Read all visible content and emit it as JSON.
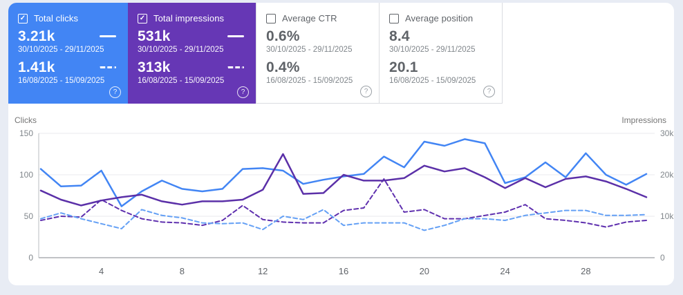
{
  "cards": [
    {
      "label": "Total clicks",
      "checked": true,
      "bg": "#4285f4",
      "value_current": "3.21k",
      "range_current": "30/10/2025 - 29/11/2025",
      "value_previous": "1.41k",
      "range_previous": "16/08/2025 - 15/09/2025"
    },
    {
      "label": "Total impressions",
      "checked": true,
      "bg": "#6637b5",
      "value_current": "531k",
      "range_current": "30/10/2025 - 29/11/2025",
      "value_previous": "313k",
      "range_previous": "16/08/2025 - 15/09/2025"
    },
    {
      "label": "Average CTR",
      "checked": false,
      "bg": "#ffffff",
      "value_current": "0.6%",
      "range_current": "30/10/2025 - 29/11/2025",
      "value_previous": "0.4%",
      "range_previous": "16/08/2025 - 15/09/2025"
    },
    {
      "label": "Average position",
      "checked": false,
      "bg": "#ffffff",
      "value_current": "8.4",
      "range_current": "30/10/2025 - 29/11/2025",
      "value_previous": "20.1",
      "range_previous": "16/08/2025 - 15/09/2025"
    }
  ],
  "icons": {
    "help_glyph": "?",
    "check_glyph": "✓"
  },
  "chart_data": {
    "type": "line",
    "x": [
      1,
      2,
      3,
      4,
      5,
      6,
      7,
      8,
      9,
      10,
      11,
      12,
      13,
      14,
      15,
      16,
      17,
      18,
      19,
      20,
      21,
      22,
      23,
      24,
      25,
      26,
      27,
      28,
      29,
      30,
      31
    ],
    "xticks": [
      4,
      8,
      12,
      16,
      20,
      24,
      28
    ],
    "grid": true,
    "left_axis": {
      "label": "Clicks",
      "ticks": [
        150,
        100,
        50,
        0
      ],
      "max": 150,
      "ylim": [
        0,
        150
      ]
    },
    "right_axis": {
      "label": "Impressions",
      "tick_labels": [
        "30k",
        "20k",
        "10k",
        "0"
      ],
      "tick_values": [
        30000,
        20000,
        10000,
        0
      ],
      "max": 30000,
      "ylim": [
        0,
        30000
      ]
    },
    "series": [
      {
        "key": "impressions-previous",
        "name": "Total impressions (16/08/2025 - 15/09/2025)",
        "axis": "right",
        "style": "dashed",
        "color": "#5e2fae",
        "values": [
          9000,
          10000,
          9800,
          14000,
          11400,
          9400,
          8600,
          8400,
          7800,
          9000,
          12600,
          9200,
          8600,
          8400,
          8400,
          11400,
          12000,
          19000,
          11000,
          11600,
          9400,
          9400,
          10200,
          11000,
          12800,
          9400,
          9000,
          8400,
          7400,
          8600,
          9000
        ]
      },
      {
        "key": "clicks-previous",
        "name": "Total clicks (16/08/2025 - 15/09/2025)",
        "axis": "left",
        "style": "dashed",
        "color": "#64a0f5",
        "values": [
          47,
          54,
          47,
          41,
          35,
          58,
          51,
          48,
          42,
          41,
          42,
          34,
          50,
          46,
          58,
          39,
          42,
          42,
          42,
          33,
          39,
          47,
          47,
          45,
          51,
          54,
          57,
          57,
          51,
          51,
          52
        ]
      },
      {
        "key": "clicks-current",
        "name": "Total clicks (30/10/2025 - 29/11/2025)",
        "axis": "left",
        "style": "solid",
        "color": "#4285f4",
        "values": [
          107,
          86,
          87,
          105,
          62,
          80,
          93,
          83,
          80,
          83,
          107,
          108,
          105,
          89,
          94,
          98,
          101,
          122,
          109,
          140,
          135,
          143,
          138,
          90,
          97,
          115,
          97,
          126,
          100,
          88,
          101
        ]
      },
      {
        "key": "impressions-current",
        "name": "Total impressions (30/10/2025 - 29/11/2025)",
        "axis": "right",
        "style": "solid",
        "color": "#5b30a8",
        "values": [
          16200,
          14000,
          12600,
          13800,
          14600,
          15200,
          13600,
          12800,
          13600,
          13600,
          14000,
          16400,
          25000,
          15400,
          15600,
          20000,
          18600,
          18600,
          19200,
          22200,
          20800,
          21600,
          19400,
          16800,
          19200,
          17000,
          19000,
          19600,
          18400,
          16600,
          14600
        ]
      }
    ]
  }
}
